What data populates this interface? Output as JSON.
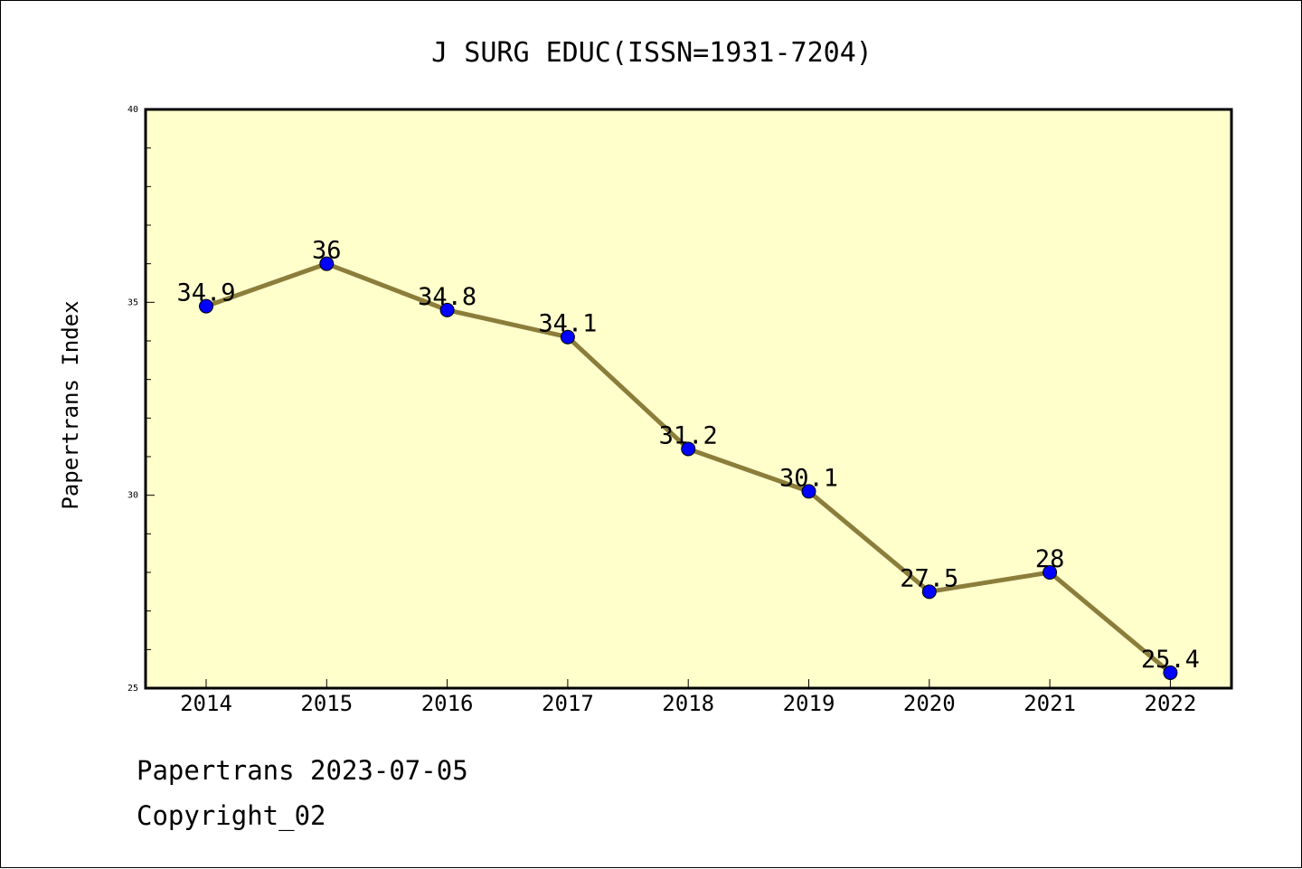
{
  "colors": {
    "plot_background": "#ffffcc",
    "line": "#8b7d3a",
    "marker": "#0000ff"
  },
  "chart_data": {
    "type": "line",
    "title": "J SURG EDUC(ISSN=1931-7204)",
    "ylabel": "Papertrans Index",
    "xlabel": "",
    "categories": [
      "2014",
      "2015",
      "2016",
      "2017",
      "2018",
      "2019",
      "2020",
      "2021",
      "2022"
    ],
    "values": [
      34.9,
      36,
      34.8,
      34.1,
      31.2,
      30.1,
      27.5,
      28,
      25.4
    ],
    "data_labels": [
      "34.9",
      "36",
      "34.8",
      "34.1",
      "31.2",
      "30.1",
      "27.5",
      "28",
      "25.4"
    ],
    "ylim": [
      25,
      40
    ],
    "yticks": [
      "25",
      "30",
      "35",
      "40"
    ],
    "grid": false,
    "legend": "none"
  },
  "footer": {
    "line1": "Papertrans 2023-07-05",
    "line2": "Copyright_02"
  }
}
